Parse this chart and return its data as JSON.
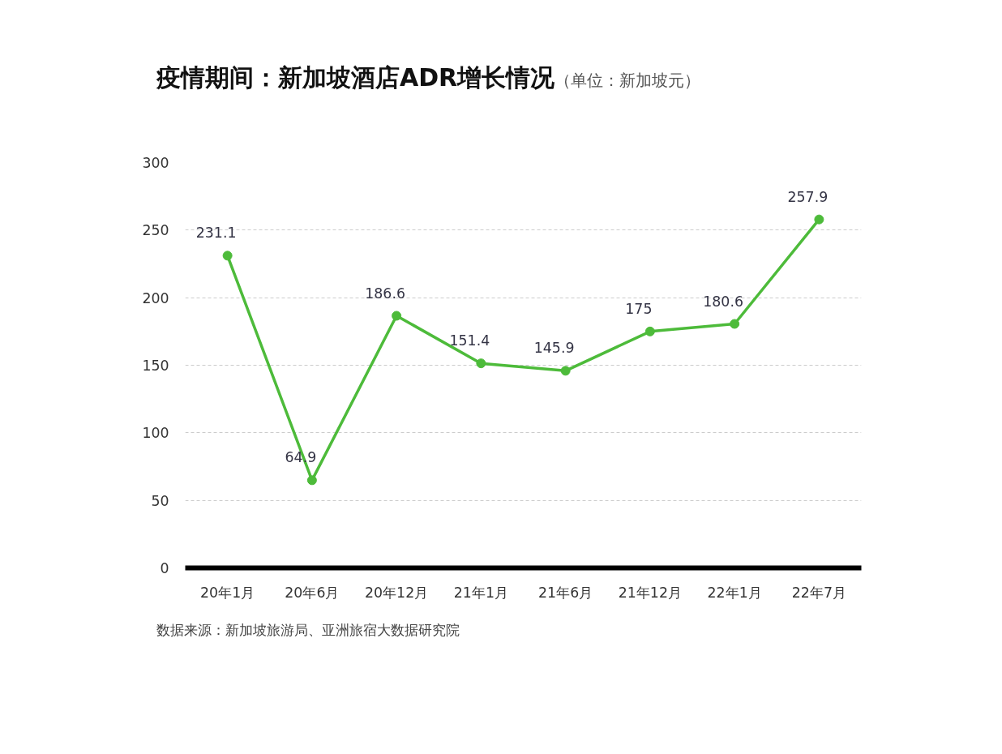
{
  "chart_data": {
    "type": "line",
    "title": "疫情期间：新加坡酒店ADR增长情况",
    "subtitle": "（单位：新加坡元）",
    "categories": [
      "20年1月",
      "20年6月",
      "20年12月",
      "21年1月",
      "21年6月",
      "21年12月",
      "22年1月",
      "22年7月"
    ],
    "series": [
      {
        "color": "#4dbb3a",
        "values": [
          231.1,
          64.9,
          186.6,
          151.4,
          145.9,
          175,
          180.6,
          257.9
        ]
      }
    ],
    "ylim": [
      0,
      300
    ],
    "yticks": [
      0,
      50,
      100,
      150,
      200,
      250,
      300
    ],
    "grid": "y",
    "marker": "circle",
    "line_style": "solid",
    "data_labels": true,
    "annotations": [
      "数据来源：新加坡旅游局、亚洲旅宿大数据研究院"
    ]
  }
}
